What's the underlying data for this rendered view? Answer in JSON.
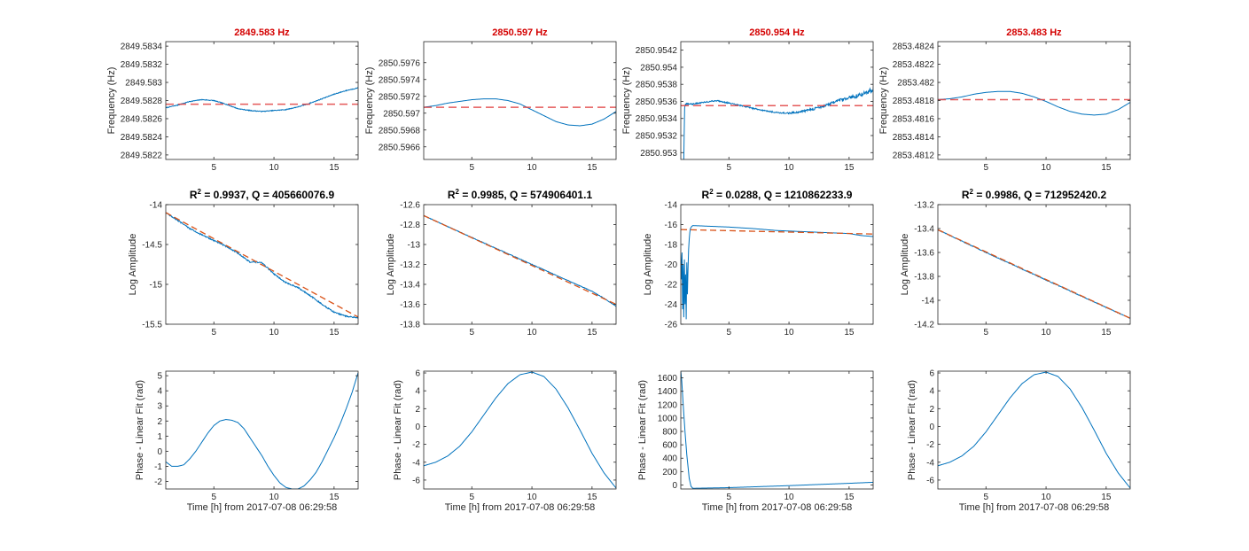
{
  "chart_data": [
    {
      "type": "line",
      "row": 1,
      "col": 1,
      "title": "2849.583 Hz",
      "title_color": "#d40000",
      "ylabel": "Frequency (Hz)",
      "xlabel": "",
      "xlim": [
        1,
        17
      ],
      "ylim": [
        2849.58215,
        2849.58345
      ],
      "xticks": [
        5,
        10,
        15
      ],
      "yticks": [
        2849.5822,
        2849.5824,
        2849.5826,
        2849.5828,
        2849.583,
        2849.5832,
        2849.5834
      ],
      "ytick_labels": [
        "2849.5822",
        "2849.5824",
        "2849.5826",
        "2849.5828",
        "2849.583",
        "2849.5832",
        "2849.5834"
      ],
      "series": [
        {
          "role": "measured",
          "color": "#0072bd",
          "noise": 4e-06,
          "x": [
            1,
            2,
            3,
            4,
            5,
            6,
            7,
            8,
            9,
            10,
            11,
            12,
            13,
            14,
            15,
            16,
            17
          ],
          "y": [
            2849.58272,
            2849.58275,
            2849.58279,
            2849.58281,
            2849.5828,
            2849.58276,
            2849.58271,
            2849.58269,
            2849.58268,
            2849.58269,
            2849.5827,
            2849.58273,
            2849.58277,
            2849.58282,
            2849.58287,
            2849.58291,
            2849.58294
          ]
        },
        {
          "role": "fit",
          "color": "#e03c3c",
          "x": [
            1,
            17
          ],
          "y": [
            2849.58276,
            2849.58276
          ]
        }
      ]
    },
    {
      "type": "line",
      "row": 1,
      "col": 2,
      "title": "2850.597 Hz",
      "title_color": "#d40000",
      "ylabel": "Frequency (Hz)",
      "xlabel": "",
      "xlim": [
        1,
        17
      ],
      "ylim": [
        2850.59645,
        2850.59785
      ],
      "xticks": [
        5,
        10,
        15
      ],
      "yticks": [
        2850.5966,
        2850.5968,
        2850.597,
        2850.5972,
        2850.5974,
        2850.5976
      ],
      "ytick_labels": [
        "2850.5966",
        "2850.5968",
        "2850.597",
        "2850.5972",
        "2850.5974",
        "2850.5976"
      ],
      "series": [
        {
          "role": "measured",
          "color": "#0072bd",
          "noise": 0,
          "x": [
            1,
            2,
            3,
            4,
            5,
            6,
            7,
            8,
            9,
            10,
            11,
            12,
            13,
            14,
            15,
            16,
            17
          ],
          "y": [
            2850.59707,
            2850.59709,
            2850.59712,
            2850.59714,
            2850.59716,
            2850.59717,
            2850.59717,
            2850.59715,
            2850.59711,
            2850.59704,
            2850.59697,
            2850.5969,
            2850.59686,
            2850.59685,
            2850.59687,
            2850.59693,
            2850.59702
          ]
        },
        {
          "role": "fit",
          "color": "#e03c3c",
          "x": [
            1,
            17
          ],
          "y": [
            2850.59707,
            2850.59707
          ]
        }
      ]
    },
    {
      "type": "line",
      "row": 1,
      "col": 3,
      "title": "2850.954 Hz",
      "title_color": "#d40000",
      "ylabel": "Frequency (Hz)",
      "xlabel": "",
      "xlim": [
        1,
        17
      ],
      "ylim": [
        2850.95292,
        2850.9543
      ],
      "xticks": [
        5,
        10,
        15
      ],
      "yticks": [
        2850.953,
        2850.9532,
        2850.9534,
        2850.9536,
        2850.9538,
        2850.954,
        2850.9542
      ],
      "ytick_labels": [
        "2850.953",
        "2850.9532",
        "2850.9534",
        "2850.9536",
        "2850.9538",
        "2850.954",
        "2850.9542"
      ],
      "series": [
        {
          "role": "measured",
          "color": "#0072bd",
          "noise": 1.4e-05,
          "x": [
            1.25,
            1.28,
            1.32,
            1.4,
            2,
            3,
            4,
            5,
            6,
            7,
            8,
            9,
            10,
            11,
            12,
            13,
            14,
            15,
            16,
            17
          ],
          "y": [
            2850.95292,
            2850.9532,
            2850.95352,
            2850.95357,
            2850.95357,
            2850.95359,
            2850.95361,
            2850.95358,
            2850.95355,
            2850.95352,
            2850.95349,
            2850.95347,
            2850.95346,
            2850.95348,
            2850.95351,
            2850.95355,
            2850.9536,
            2850.95364,
            2850.95368,
            2850.95374
          ]
        },
        {
          "role": "fit",
          "color": "#e03c3c",
          "x": [
            1,
            17
          ],
          "y": [
            2850.95355,
            2850.95355
          ]
        }
      ]
    },
    {
      "type": "line",
      "row": 1,
      "col": 4,
      "title": "2853.483 Hz",
      "title_color": "#d40000",
      "ylabel": "Frequency (Hz)",
      "xlabel": "",
      "xlim": [
        1,
        17
      ],
      "ylim": [
        2853.48115,
        2853.48245
      ],
      "xticks": [
        5,
        10,
        15
      ],
      "yticks": [
        2853.4812,
        2853.4814,
        2853.4816,
        2853.4818,
        2853.482,
        2853.4822,
        2853.4824
      ],
      "ytick_labels": [
        "2853.4812",
        "2853.4814",
        "2853.4816",
        "2853.4818",
        "2853.482",
        "2853.4822",
        "2853.4824"
      ],
      "series": [
        {
          "role": "measured",
          "color": "#0072bd",
          "noise": 0,
          "x": [
            1,
            2,
            3,
            4,
            5,
            6,
            7,
            8,
            9,
            10,
            11,
            12,
            13,
            14,
            15,
            16,
            17
          ],
          "y": [
            2853.48181,
            2853.48182,
            2853.48184,
            2853.48187,
            2853.48189,
            2853.4819,
            2853.4819,
            2853.48188,
            2853.48184,
            2853.48179,
            2853.48173,
            2853.48168,
            2853.48165,
            2853.48164,
            2853.48165,
            2853.4817,
            2853.48178
          ]
        },
        {
          "role": "fit",
          "color": "#e03c3c",
          "x": [
            1,
            17
          ],
          "y": [
            2853.48181,
            2853.48181
          ]
        }
      ]
    },
    {
      "type": "line",
      "row": 2,
      "col": 1,
      "title": "R² = 0.9937, Q = 405660076.9",
      "title_color": "#000000",
      "ylabel": "Log Amplitude",
      "xlabel": "",
      "xlim": [
        1,
        17
      ],
      "ylim": [
        -15.5,
        -14
      ],
      "xticks": [
        5,
        10,
        15
      ],
      "yticks": [
        -15.5,
        -15,
        -14.5,
        -14
      ],
      "ytick_labels": [
        "-15.5",
        "-15",
        "-14.5",
        "-14"
      ],
      "series": [
        {
          "role": "measured",
          "color": "#0072bd",
          "noise": 0.008,
          "x": [
            1,
            2,
            3,
            4,
            5,
            6,
            7,
            8,
            8.5,
            9,
            10,
            11,
            12,
            13,
            14,
            15,
            16,
            17
          ],
          "y": [
            -14.1,
            -14.2,
            -14.3,
            -14.38,
            -14.45,
            -14.52,
            -14.61,
            -14.72,
            -14.72,
            -14.73,
            -14.87,
            -14.98,
            -15.04,
            -15.14,
            -15.25,
            -15.35,
            -15.4,
            -15.42
          ]
        },
        {
          "role": "fit",
          "color": "#d95319",
          "x": [
            1,
            17
          ],
          "y": [
            -14.1,
            -15.41
          ]
        }
      ]
    },
    {
      "type": "line",
      "row": 2,
      "col": 2,
      "title": "R² = 0.9985, Q = 574906401.1",
      "title_color": "#000000",
      "ylabel": "Log Amplitude",
      "xlabel": "",
      "xlim": [
        1,
        17
      ],
      "ylim": [
        -13.8,
        -12.6
      ],
      "xticks": [
        5,
        10,
        15
      ],
      "yticks": [
        -13.8,
        -13.6,
        -13.4,
        -13.2,
        -13,
        -12.8,
        -12.6
      ],
      "ytick_labels": [
        "-13.8",
        "-13.6",
        "-13.4",
        "-13.2",
        "-13",
        "-12.8",
        "-12.6"
      ],
      "series": [
        {
          "role": "measured",
          "color": "#0072bd",
          "noise": 0.003,
          "x": [
            1,
            5,
            10,
            15,
            16,
            17
          ],
          "y": [
            -12.71,
            -12.93,
            -13.2,
            -13.47,
            -13.54,
            -13.62
          ]
        },
        {
          "role": "fit",
          "color": "#d95319",
          "x": [
            1,
            17
          ],
          "y": [
            -12.71,
            -13.6
          ]
        }
      ]
    },
    {
      "type": "line",
      "row": 2,
      "col": 3,
      "title": "R² = 0.0288, Q = 1210862233.9",
      "title_color": "#000000",
      "ylabel": "Log Amplitude",
      "xlabel": "",
      "xlim": [
        1,
        17
      ],
      "ylim": [
        -26,
        -14
      ],
      "xticks": [
        5,
        10,
        15
      ],
      "yticks": [
        -26,
        -24,
        -22,
        -20,
        -18,
        -16,
        -14
      ],
      "ytick_labels": [
        "-26",
        "-24",
        "-22",
        "-20",
        "-18",
        "-16",
        "-14"
      ],
      "series": [
        {
          "role": "measured",
          "color": "#0072bd",
          "noise": 0,
          "x": [
            1,
            1.05,
            1.1,
            1.15,
            1.2,
            1.25,
            1.3,
            1.35,
            1.4,
            1.45,
            1.5,
            1.55,
            1.6,
            1.65,
            1.7,
            1.75,
            1.8,
            1.9,
            2,
            3,
            5,
            7,
            9,
            11,
            13,
            15,
            16,
            17
          ],
          "y": [
            -19,
            -21.5,
            -18.8,
            -24.5,
            -20,
            -25.3,
            -19.5,
            -24,
            -21,
            -25.5,
            -19.8,
            -23,
            -20.5,
            -18.5,
            -17.5,
            -16.8,
            -16.4,
            -16.2,
            -16.1,
            -16.15,
            -16.25,
            -16.4,
            -16.6,
            -16.7,
            -16.8,
            -16.9,
            -17.1,
            -17.2
          ]
        },
        {
          "role": "fit",
          "color": "#d95319",
          "x": [
            1,
            17
          ],
          "y": [
            -16.5,
            -16.95
          ]
        }
      ]
    },
    {
      "type": "line",
      "row": 2,
      "col": 4,
      "title": "R² = 0.9986, Q = 712952420.2",
      "title_color": "#000000",
      "ylabel": "Log Amplitude",
      "xlabel": "",
      "xlim": [
        1,
        17
      ],
      "ylim": [
        -14.2,
        -13.2
      ],
      "xticks": [
        5,
        10,
        15
      ],
      "yticks": [
        -14.2,
        -14,
        -13.8,
        -13.6,
        -13.4,
        -13.2
      ],
      "ytick_labels": [
        "-14.2",
        "-14",
        "-13.8",
        "-13.6",
        "-13.4",
        "-13.2"
      ],
      "series": [
        {
          "role": "measured",
          "color": "#0072bd",
          "noise": 0.003,
          "x": [
            1,
            5,
            10,
            15,
            17
          ],
          "y": [
            -13.41,
            -13.6,
            -13.83,
            -14.06,
            -14.15
          ]
        },
        {
          "role": "fit",
          "color": "#d95319",
          "x": [
            1,
            17
          ],
          "y": [
            -13.41,
            -14.15
          ]
        }
      ]
    },
    {
      "type": "line",
      "row": 3,
      "col": 1,
      "title": "",
      "title_color": "#000000",
      "ylabel": "Phase - Linear Fit (rad)",
      "xlabel": "Time [h] from 2017-07-08 06:29:58",
      "xlim": [
        1,
        17
      ],
      "ylim": [
        -2.5,
        5.3
      ],
      "xticks": [
        5,
        10,
        15
      ],
      "yticks": [
        -2,
        -1,
        0,
        1,
        2,
        3,
        4,
        5
      ],
      "ytick_labels": [
        "-2",
        "-1",
        "0",
        "1",
        "2",
        "3",
        "4",
        "5"
      ],
      "series": [
        {
          "role": "measured",
          "color": "#0072bd",
          "noise": 0,
          "x": [
            1,
            1.5,
            2,
            2.5,
            3,
            3.5,
            4,
            4.5,
            5,
            5.5,
            6,
            6.5,
            7,
            7.5,
            8,
            8.5,
            9,
            9.5,
            10,
            10.5,
            11,
            11.5,
            12,
            12.5,
            13,
            13.5,
            14,
            14.5,
            15,
            15.5,
            16,
            16.5,
            17
          ],
          "y": [
            -0.7,
            -1,
            -1,
            -0.9,
            -0.5,
            0,
            0.6,
            1.2,
            1.7,
            2.0,
            2.1,
            2.05,
            1.9,
            1.5,
            0.9,
            0.3,
            -0.3,
            -1,
            -1.6,
            -2.1,
            -2.4,
            -2.5,
            -2.5,
            -2.3,
            -1.9,
            -1.4,
            -0.7,
            0.1,
            0.9,
            1.8,
            2.8,
            3.9,
            5.2
          ]
        }
      ]
    },
    {
      "type": "line",
      "row": 3,
      "col": 2,
      "title": "",
      "title_color": "#000000",
      "ylabel": "Phase - Linear Fit (rad)",
      "xlabel": "Time [h] from 2017-07-08 06:29:58",
      "xlim": [
        1,
        17
      ],
      "ylim": [
        -7,
        6.2
      ],
      "xticks": [
        5,
        10,
        15
      ],
      "yticks": [
        -6,
        -4,
        -2,
        0,
        2,
        4,
        6
      ],
      "ytick_labels": [
        "-6",
        "-4",
        "-2",
        "0",
        "2",
        "4",
        "6"
      ],
      "series": [
        {
          "role": "measured",
          "color": "#0072bd",
          "noise": 0,
          "x": [
            1,
            2,
            3,
            4,
            5,
            6,
            7,
            8,
            9,
            10,
            11,
            12,
            13,
            14,
            15,
            16,
            17
          ],
          "y": [
            -4.4,
            -4.0,
            -3.3,
            -2.2,
            -0.6,
            1.3,
            3.2,
            4.8,
            5.8,
            6.1,
            5.6,
            4.2,
            2.1,
            -0.4,
            -3.0,
            -5.2,
            -6.9
          ]
        }
      ]
    },
    {
      "type": "line",
      "row": 3,
      "col": 3,
      "title": "",
      "title_color": "#000000",
      "ylabel": "Phase - Linear Fit (rad)",
      "xlabel": "Time [h] from 2017-07-08 06:29:58",
      "xlim": [
        1,
        17
      ],
      "ylim": [
        -60,
        1700
      ],
      "xticks": [
        5,
        10,
        15
      ],
      "yticks": [
        0,
        200,
        400,
        600,
        800,
        1000,
        1200,
        1400,
        1600
      ],
      "ytick_labels": [
        "0",
        "200",
        "400",
        "600",
        "800",
        "1000",
        "1200",
        "1400",
        "1600"
      ],
      "series": [
        {
          "role": "measured",
          "color": "#0072bd",
          "noise": 0,
          "x": [
            1,
            1.08,
            1.2,
            1.35,
            1.5,
            1.7,
            1.85,
            2,
            5,
            10,
            15,
            17
          ],
          "y": [
            1700,
            1550,
            1200,
            800,
            450,
            100,
            -20,
            -50,
            -40,
            -10,
            25,
            40
          ]
        }
      ]
    },
    {
      "type": "line",
      "row": 3,
      "col": 4,
      "title": "",
      "title_color": "#000000",
      "ylabel": "Phase - Linear Fit (rad)",
      "xlabel": "Time [h] from 2017-07-08 06:29:58",
      "xlim": [
        1,
        17
      ],
      "ylim": [
        -7,
        6.2
      ],
      "xticks": [
        5,
        10,
        15
      ],
      "yticks": [
        -6,
        -4,
        -2,
        0,
        2,
        4,
        6
      ],
      "ytick_labels": [
        "-6",
        "-4",
        "-2",
        "0",
        "2",
        "4",
        "6"
      ],
      "series": [
        {
          "role": "measured",
          "color": "#0072bd",
          "noise": 0,
          "x": [
            1,
            2,
            3,
            4,
            5,
            6,
            7,
            8,
            9,
            10,
            11,
            12,
            13,
            14,
            15,
            16,
            17
          ],
          "y": [
            -4.4,
            -4.0,
            -3.3,
            -2.2,
            -0.6,
            1.3,
            3.2,
            4.8,
            5.8,
            6.1,
            5.6,
            4.2,
            2.1,
            -0.4,
            -3.0,
            -5.2,
            -6.9
          ]
        }
      ]
    }
  ]
}
